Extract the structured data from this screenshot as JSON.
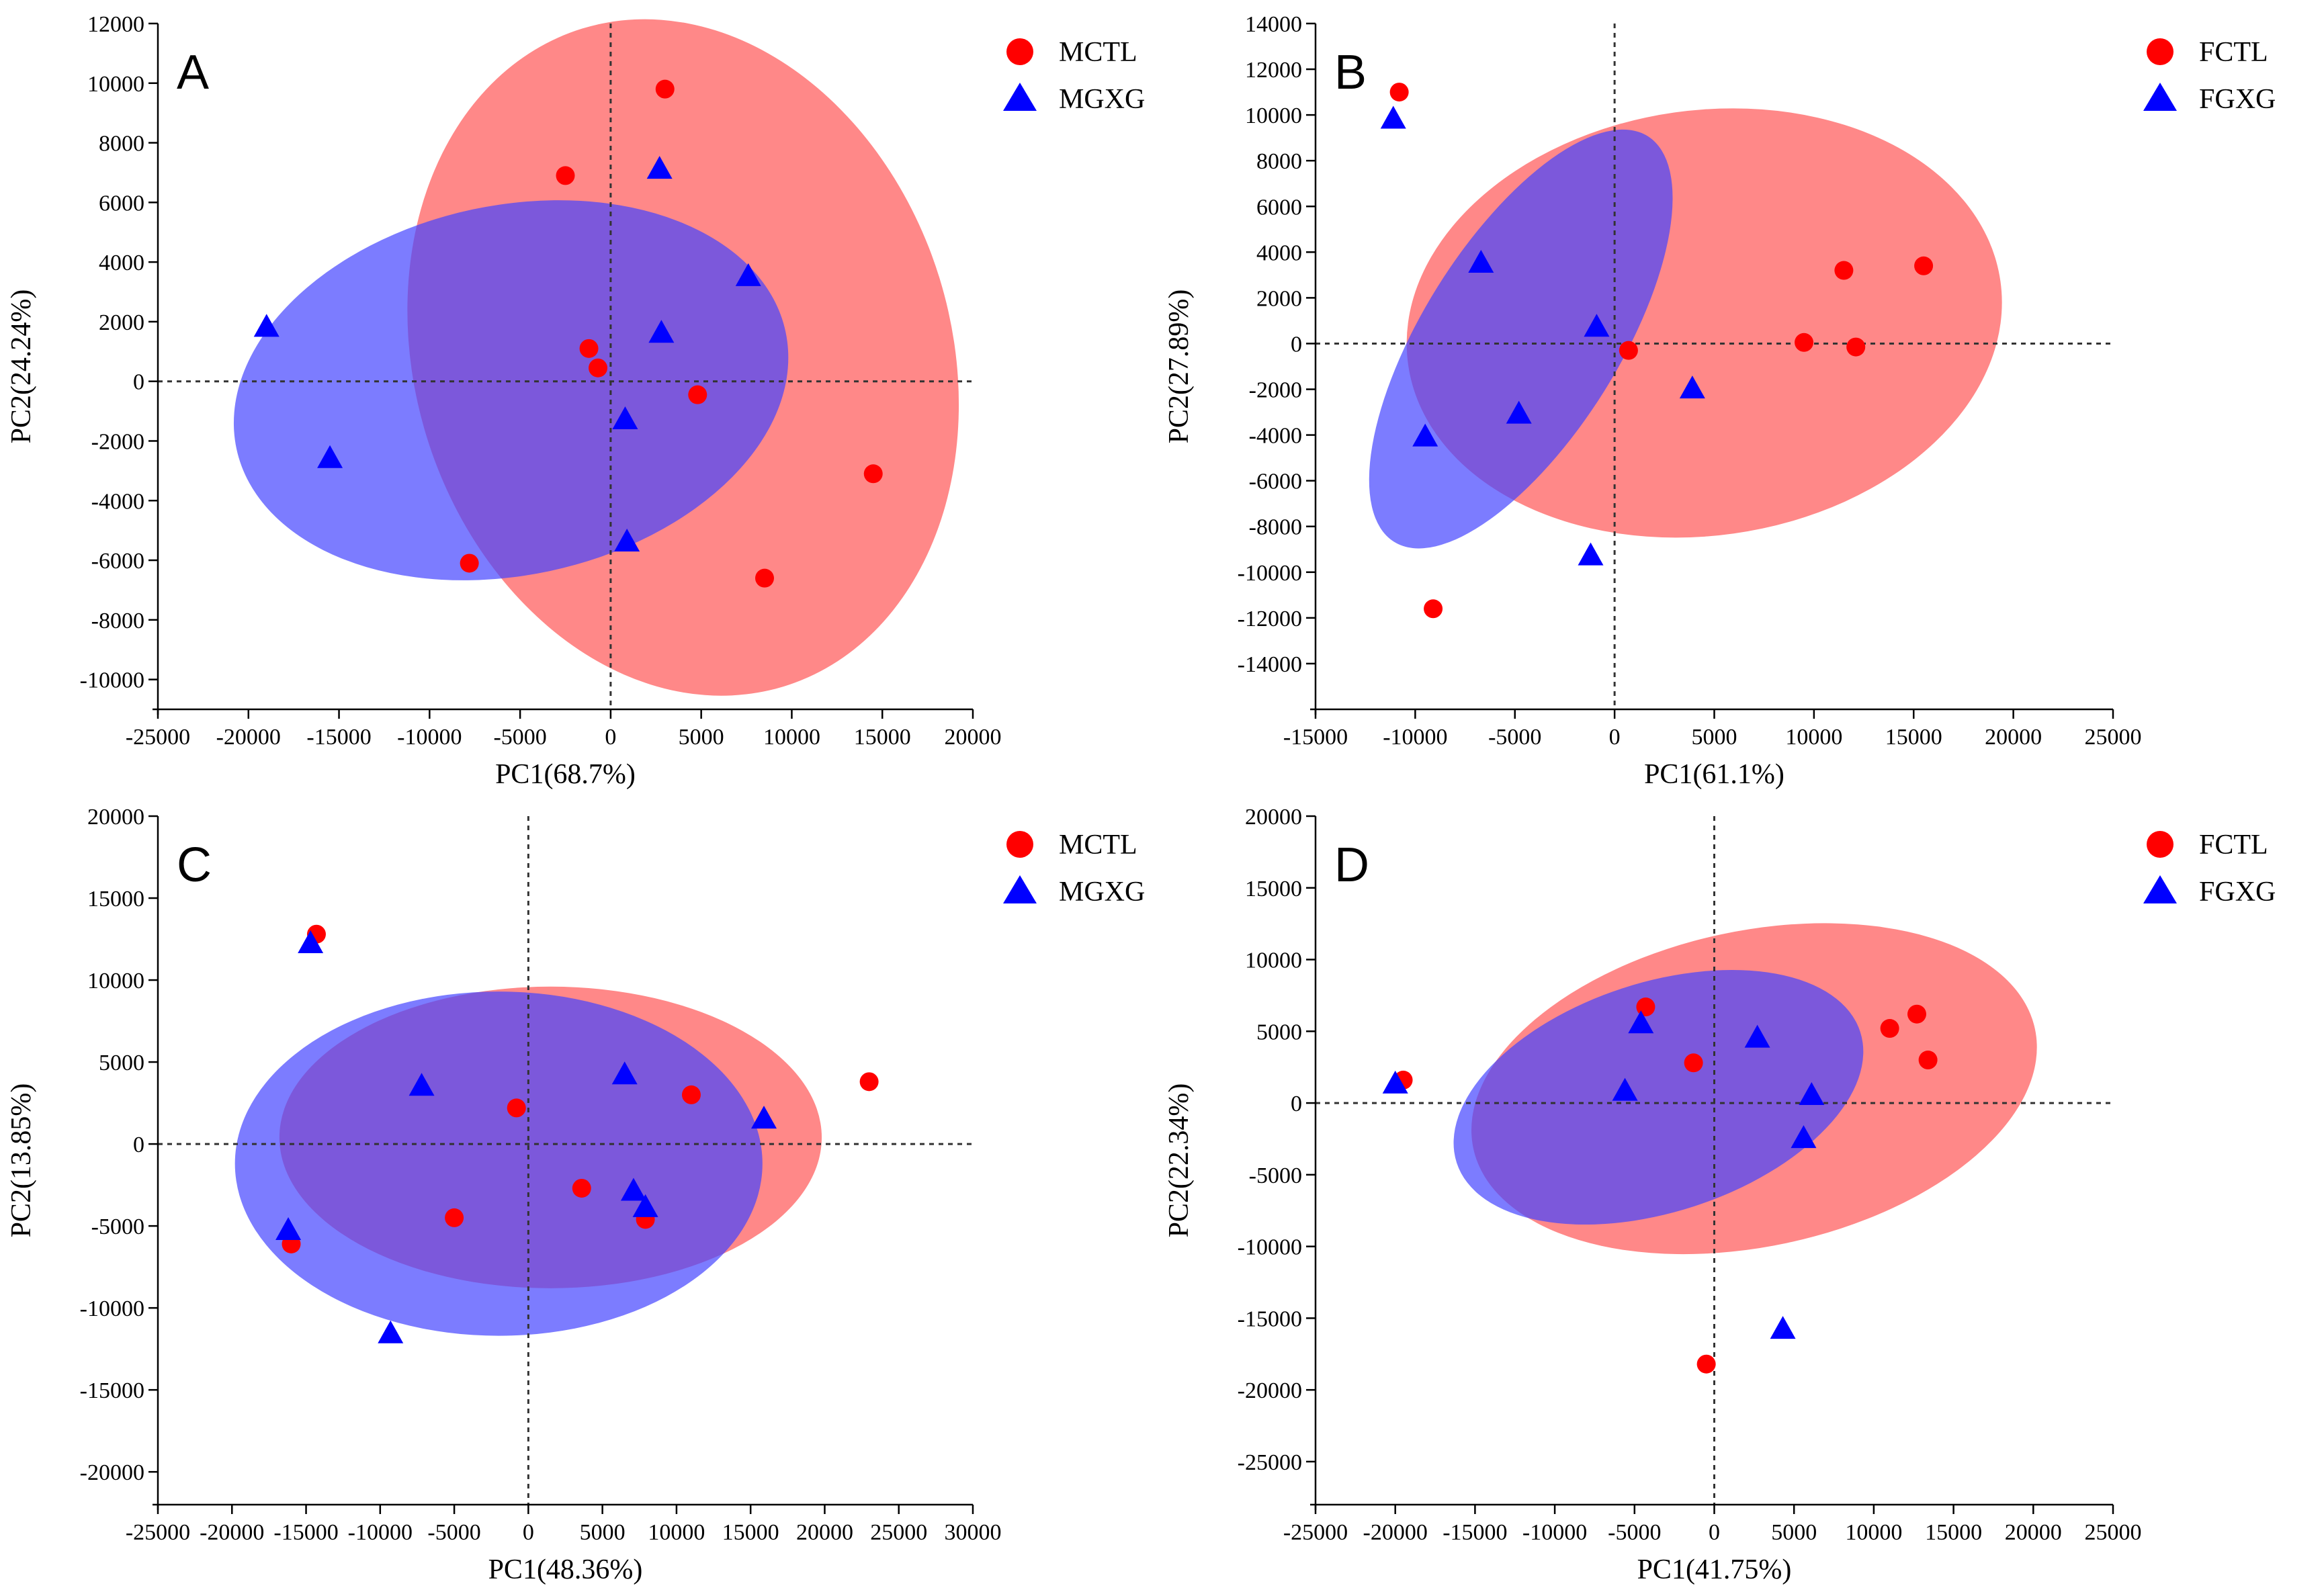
{
  "chart_data": [
    {
      "type": "scatter",
      "panel": "A",
      "xlabel": "PC1(68.7%)",
      "ylabel": "PC2(24.24%)",
      "xlim": [
        -25000,
        20000
      ],
      "ylim": [
        -11000,
        12000
      ],
      "xticks": [
        -25000,
        -20000,
        -15000,
        -10000,
        -5000,
        0,
        5000,
        10000,
        15000,
        20000
      ],
      "yticks": [
        -10000,
        -8000,
        -6000,
        -4000,
        -2000,
        0,
        2000,
        4000,
        6000,
        8000,
        10000,
        12000
      ],
      "legend_position": "top-right",
      "series": [
        {
          "name": "MCTL",
          "marker": "circle",
          "color": "#ff0000",
          "fill": "#ff5555",
          "ellipse": {
            "cx": 4000,
            "cy": 800,
            "rx": 19000,
            "ry": 9000,
            "rotation_deg": -107
          },
          "points": [
            [
              3000,
              9800
            ],
            [
              -2500,
              6900
            ],
            [
              -1200,
              1100
            ],
            [
              -700,
              450
            ],
            [
              4800,
              -450
            ],
            [
              14500,
              -3100
            ],
            [
              -7800,
              -6100
            ],
            [
              8500,
              -6600
            ]
          ]
        },
        {
          "name": "MGXG",
          "marker": "triangle",
          "color": "#0000ff",
          "fill": "#4444ff",
          "ellipse": {
            "cx": -5500,
            "cy": -300,
            "rx": 15500,
            "ry": 6200,
            "rotation_deg": -12
          },
          "points": [
            [
              -19000,
              1800
            ],
            [
              -15500,
              -2600
            ],
            [
              2700,
              7100
            ],
            [
              2800,
              1600
            ],
            [
              7600,
              3500
            ],
            [
              800,
              -1300
            ],
            [
              900,
              -5400
            ]
          ]
        }
      ]
    },
    {
      "type": "scatter",
      "panel": "B",
      "xlabel": "PC1(61.1%)",
      "ylabel": "PC2(27.89%)",
      "xlim": [
        -15000,
        25000
      ],
      "ylim": [
        -16000,
        14000
      ],
      "xticks": [
        -15000,
        -10000,
        -5000,
        0,
        5000,
        10000,
        15000,
        20000,
        25000
      ],
      "yticks": [
        -14000,
        -12000,
        -10000,
        -8000,
        -6000,
        -4000,
        -2000,
        0,
        2000,
        4000,
        6000,
        8000,
        10000,
        12000,
        14000
      ],
      "legend_position": "top-right",
      "series": [
        {
          "name": "FCTL",
          "marker": "circle",
          "color": "#ff0000",
          "fill": "#ff5555",
          "ellipse": {
            "cx": 4500,
            "cy": 900,
            "rx": 15000,
            "ry": 9300,
            "rotation_deg": -8
          },
          "points": [
            [
              -10800,
              11000
            ],
            [
              11500,
              3200
            ],
            [
              15500,
              3400
            ],
            [
              9500,
              50
            ],
            [
              12100,
              -150
            ],
            [
              700,
              -300
            ],
            [
              -9100,
              -11600
            ]
          ]
        },
        {
          "name": "FGXG",
          "marker": "triangle",
          "color": "#0000ff",
          "fill": "#4444ff",
          "ellipse": {
            "cx": -4700,
            "cy": 200,
            "rx": 12000,
            "ry": 4300,
            "rotation_deg": -58
          },
          "points": [
            [
              -11100,
              9800
            ],
            [
              -6700,
              3500
            ],
            [
              -900,
              700
            ],
            [
              -4800,
              -3100
            ],
            [
              -9500,
              -4100
            ],
            [
              3900,
              -2000
            ],
            [
              -1200,
              -9300
            ]
          ]
        }
      ]
    },
    {
      "type": "scatter",
      "panel": "C",
      "xlabel": "PC1(48.36%)",
      "ylabel": "PC2(13.85%)",
      "xlim": [
        -25000,
        30000
      ],
      "ylim": [
        -22000,
        20000
      ],
      "xticks": [
        -25000,
        -20000,
        -15000,
        -10000,
        -5000,
        0,
        5000,
        10000,
        15000,
        20000,
        25000,
        30000
      ],
      "yticks": [
        -20000,
        -15000,
        -10000,
        -5000,
        0,
        5000,
        10000,
        15000,
        20000
      ],
      "legend_position": "top-right",
      "series": [
        {
          "name": "MCTL",
          "marker": "circle",
          "color": "#ff0000",
          "fill": "#ff5555",
          "ellipse": {
            "cx": 1500,
            "cy": 400,
            "rx": 18300,
            "ry": 9200,
            "rotation_deg": 0
          },
          "points": [
            [
              -14300,
              12800
            ],
            [
              23000,
              3800
            ],
            [
              -800,
              2200
            ],
            [
              11000,
              3000
            ],
            [
              3600,
              -2700
            ],
            [
              -5000,
              -4500
            ],
            [
              7900,
              -4600
            ],
            [
              -16000,
              -6100
            ]
          ]
        },
        {
          "name": "MGXG",
          "marker": "triangle",
          "color": "#0000ff",
          "fill": "#4444ff",
          "ellipse": {
            "cx": -2000,
            "cy": -1200,
            "rx": 17800,
            "ry": 10500,
            "rotation_deg": 0
          },
          "points": [
            [
              -14700,
              12200
            ],
            [
              -7200,
              3500
            ],
            [
              6500,
              4200
            ],
            [
              15900,
              1500
            ],
            [
              7100,
              -2900
            ],
            [
              7900,
              -3900
            ],
            [
              -16200,
              -5300
            ],
            [
              -9300,
              -11600
            ]
          ]
        }
      ]
    },
    {
      "type": "scatter",
      "panel": "D",
      "xlabel": "PC1(41.75%)",
      "ylabel": "PC2(22.34%)",
      "xlim": [
        -25000,
        25000
      ],
      "ylim": [
        -28000,
        20000
      ],
      "xticks": [
        -25000,
        -20000,
        -15000,
        -10000,
        -5000,
        0,
        5000,
        10000,
        15000,
        20000,
        25000
      ],
      "yticks": [
        -25000,
        -20000,
        -15000,
        -10000,
        -5000,
        0,
        5000,
        10000,
        15000,
        20000
      ],
      "legend_position": "top-right",
      "series": [
        {
          "name": "FCTL",
          "marker": "circle",
          "color": "#ff0000",
          "fill": "#ff5555",
          "ellipse": {
            "cx": 2500,
            "cy": 1000,
            "rx": 18000,
            "ry": 11000,
            "rotation_deg": -12
          },
          "points": [
            [
              -19500,
              1600
            ],
            [
              -4300,
              6700
            ],
            [
              -1300,
              2800
            ],
            [
              11000,
              5200
            ],
            [
              12700,
              6200
            ],
            [
              13400,
              3000
            ],
            [
              -500,
              -18200
            ]
          ]
        },
        {
          "name": "FGXG",
          "marker": "triangle",
          "color": "#0000ff",
          "fill": "#4444ff",
          "ellipse": {
            "cx": -3500,
            "cy": 400,
            "rx": 13300,
            "ry": 8000,
            "rotation_deg": -18
          },
          "points": [
            [
              -20000,
              1300
            ],
            [
              -4600,
              5500
            ],
            [
              2700,
              4500
            ],
            [
              -5600,
              800
            ],
            [
              6100,
              500
            ],
            [
              5600,
              -2500
            ],
            [
              4300,
              -15800
            ]
          ]
        }
      ]
    }
  ]
}
